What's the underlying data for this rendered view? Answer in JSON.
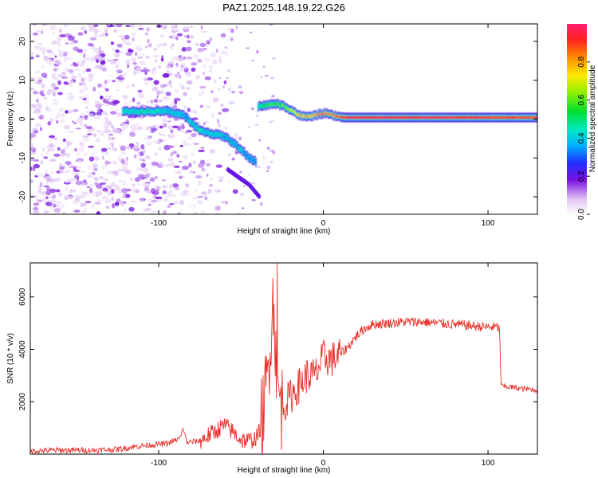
{
  "page": {
    "title": "PAZ1.2025.148.19.22.G26"
  },
  "chart_data": [
    {
      "type": "heatmap",
      "title": "PAZ1.2025.148.19.22.G26",
      "xlabel": "Height of straight line (km)",
      "ylabel": "Frequency (Hz)",
      "xlim": [
        -178,
        130
      ],
      "ylim": [
        -24.5,
        24.5
      ],
      "x_ticks": [
        -100,
        0,
        100
      ],
      "y_ticks": [
        -20,
        -10,
        0,
        10,
        20
      ],
      "colorbar": {
        "label": "Normalized spectral amplitude",
        "range": [
          0,
          1
        ],
        "ticks": [
          "0.0",
          "0.2",
          "0.4",
          "0.6",
          "0.8"
        ]
      },
      "ridge": {
        "x": [
          -122,
          -110,
          -100,
          -95,
          -90,
          -85,
          -80,
          -75,
          -70,
          -65,
          -60,
          -55,
          -50,
          -45,
          -41,
          -40,
          -38,
          -35,
          -30,
          -25,
          -20,
          -15,
          -10,
          -5,
          0,
          5,
          10,
          15,
          30,
          60,
          100,
          130
        ],
        "frequency": [
          2,
          2,
          2,
          2,
          1.5,
          1,
          -1,
          -3,
          -3.5,
          -4,
          -4.5,
          -6,
          -8,
          -10,
          -11,
          3,
          3.5,
          3.5,
          4,
          3.5,
          2.5,
          1,
          0.5,
          1,
          1.5,
          1,
          0.5,
          0.4,
          0.4,
          0.4,
          0.4,
          0.4
        ],
        "amplitude": [
          0.4,
          0.45,
          0.45,
          0.4,
          0.4,
          0.35,
          0.4,
          0.45,
          0.4,
          0.4,
          0.35,
          0.35,
          0.35,
          0.3,
          0.3,
          0.45,
          0.5,
          0.55,
          0.55,
          0.6,
          0.65,
          0.75,
          0.8,
          0.8,
          0.85,
          0.85,
          0.9,
          0.95,
          0.95,
          0.95,
          0.92,
          0.9
        ]
      },
      "noise_region": [
        -178,
        -120
      ]
    },
    {
      "type": "line",
      "xlabel": "Height of straight line (km)",
      "ylabel": "SNR (10 * v/v)",
      "xlim": [
        -178,
        130
      ],
      "ylim": [
        0,
        7300
      ],
      "x_ticks": [
        -100,
        0,
        100
      ],
      "y_ticks": [
        2000,
        4000,
        6000
      ],
      "line_color": "#e8302a",
      "series": [
        {
          "x": [
            -178,
            -160,
            -140,
            -125,
            -115,
            -105,
            -95,
            -87,
            -85,
            -83,
            -75,
            -70,
            -65,
            -60,
            -55,
            -50,
            -45,
            -40,
            -37,
            -34,
            -32,
            -30,
            -28,
            -25,
            -20,
            -15,
            -10,
            -5,
            0,
            5,
            10,
            15,
            20,
            25,
            30,
            40,
            50,
            60,
            70,
            80,
            90,
            100,
            105,
            107,
            108,
            115,
            120,
            130
          ],
          "y": [
            120,
            150,
            150,
            180,
            280,
            350,
            400,
            600,
            1000,
            450,
            500,
            700,
            900,
            1100,
            850,
            550,
            500,
            650,
            1300,
            2800,
            4800,
            6000,
            2500,
            1800,
            2200,
            2600,
            3000,
            3000,
            3700,
            3600,
            3800,
            4100,
            4500,
            4800,
            4950,
            5000,
            5050,
            5050,
            5000,
            4950,
            4900,
            4850,
            4850,
            4800,
            2600,
            2550,
            2500,
            2450
          ]
        }
      ]
    }
  ]
}
